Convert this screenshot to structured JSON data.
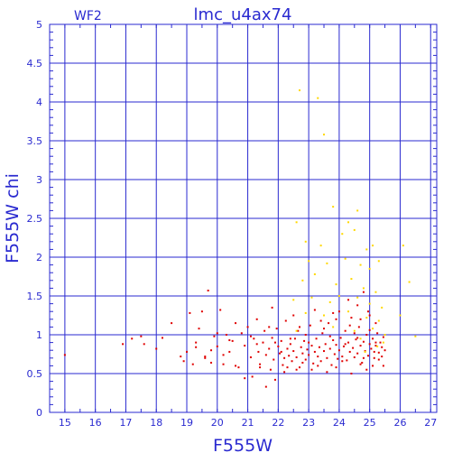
{
  "chart_data": {
    "type": "scatter",
    "title": "lmc_u4ax74",
    "subtitle": "WF2",
    "xlabel": "F555W",
    "ylabel": "F555W chi",
    "xlim": [
      14.5,
      27.2
    ],
    "ylim": [
      0,
      5
    ],
    "xticks": [
      15,
      16,
      17,
      18,
      19,
      20,
      21,
      22,
      23,
      24,
      25,
      26,
      27
    ],
    "yticks": [
      0,
      0.5,
      1,
      1.5,
      2,
      2.5,
      3,
      3.5,
      4,
      4.5,
      5
    ],
    "ytick_labels": [
      "0",
      "0.5",
      "1",
      "1.5",
      "2",
      "2.5",
      "3",
      "3.5",
      "4",
      "4.5",
      "5"
    ],
    "grid": true,
    "colors": {
      "axis": "#2a2ad0",
      "grid": "#2a2ad0",
      "series_red": "#e00000",
      "series_yellow": "#ffd800"
    },
    "series": [
      {
        "color": "#e00000",
        "points": [
          [
            15.0,
            0.74
          ],
          [
            16.9,
            0.88
          ],
          [
            17.2,
            0.95
          ],
          [
            17.5,
            0.98
          ],
          [
            17.6,
            0.88
          ],
          [
            18.0,
            0.82
          ],
          [
            18.2,
            0.96
          ],
          [
            18.5,
            1.15
          ],
          [
            18.8,
            0.72
          ],
          [
            19.0,
            0.78
          ],
          [
            19.1,
            1.28
          ],
          [
            19.2,
            0.62
          ],
          [
            19.3,
            0.9
          ],
          [
            19.4,
            1.08
          ],
          [
            19.5,
            1.3
          ],
          [
            19.6,
            0.72
          ],
          [
            19.7,
            1.57
          ],
          [
            19.8,
            0.64
          ],
          [
            19.9,
            0.98
          ],
          [
            20.0,
            0.85
          ],
          [
            20.1,
            1.32
          ],
          [
            20.2,
            0.74
          ],
          [
            20.3,
            1.0
          ],
          [
            20.4,
            0.78
          ],
          [
            20.5,
            0.92
          ],
          [
            20.6,
            0.6
          ],
          [
            20.7,
            0.58
          ],
          [
            20.8,
            1.02
          ],
          [
            20.9,
            0.86
          ],
          [
            21.0,
            1.1
          ],
          [
            21.1,
            0.71
          ],
          [
            21.15,
            0.46
          ],
          [
            21.2,
            0.95
          ],
          [
            21.3,
            1.2
          ],
          [
            21.35,
            0.78
          ],
          [
            21.4,
            0.62
          ],
          [
            21.5,
            0.9
          ],
          [
            21.55,
            1.05
          ],
          [
            21.6,
            0.74
          ],
          [
            21.7,
            0.82
          ],
          [
            21.75,
            0.55
          ],
          [
            21.8,
            0.96
          ],
          [
            21.85,
            0.68
          ],
          [
            21.9,
            0.42
          ],
          [
            21.95,
            1.08
          ],
          [
            22.0,
            0.85
          ],
          [
            22.05,
            0.76
          ],
          [
            22.1,
            0.92
          ],
          [
            22.15,
            0.61
          ],
          [
            22.2,
            0.7
          ],
          [
            22.25,
            1.18
          ],
          [
            22.3,
            0.82
          ],
          [
            22.35,
            0.73
          ],
          [
            22.4,
            0.88
          ],
          [
            22.45,
            0.66
          ],
          [
            22.5,
            0.79
          ],
          [
            22.55,
            0.95
          ],
          [
            22.6,
            0.71
          ],
          [
            22.65,
            1.05
          ],
          [
            22.7,
            0.58
          ],
          [
            22.75,
            0.84
          ],
          [
            22.8,
            0.76
          ],
          [
            22.85,
            0.92
          ],
          [
            22.9,
            0.68
          ],
          [
            22.95,
            0.81
          ],
          [
            23.0,
            0.74
          ],
          [
            23.05,
            1.12
          ],
          [
            23.1,
            0.86
          ],
          [
            23.15,
            0.63
          ],
          [
            23.2,
            0.78
          ],
          [
            23.25,
            0.95
          ],
          [
            23.3,
            0.72
          ],
          [
            23.35,
            0.84
          ],
          [
            23.4,
            0.66
          ],
          [
            23.45,
            1.02
          ],
          [
            23.5,
            0.79
          ],
          [
            23.55,
            0.88
          ],
          [
            23.6,
            0.7
          ],
          [
            23.65,
            1.15
          ],
          [
            23.7,
            0.82
          ],
          [
            23.75,
            0.61
          ],
          [
            23.8,
            0.93
          ],
          [
            23.85,
            0.75
          ],
          [
            23.9,
            0.87
          ],
          [
            23.95,
            0.69
          ],
          [
            24.0,
            0.8
          ],
          [
            24.05,
            0.96
          ],
          [
            24.1,
            0.72
          ],
          [
            24.15,
            0.85
          ],
          [
            24.2,
            1.05
          ],
          [
            24.25,
            0.67
          ],
          [
            24.3,
            0.9
          ],
          [
            24.35,
            0.78
          ],
          [
            24.4,
            1.22
          ],
          [
            24.45,
            0.83
          ],
          [
            24.5,
            0.71
          ],
          [
            24.55,
            0.94
          ],
          [
            24.6,
            0.76
          ],
          [
            24.65,
            1.1
          ],
          [
            24.7,
            0.86
          ],
          [
            24.75,
            0.64
          ],
          [
            24.8,
            0.91
          ],
          [
            24.85,
            0.79
          ],
          [
            24.9,
            1.0
          ],
          [
            24.95,
            0.73
          ],
          [
            25.0,
            0.88
          ],
          [
            25.05,
            0.82
          ],
          [
            25.1,
            0.95
          ],
          [
            25.15,
            0.7
          ],
          [
            25.2,
            0.86
          ],
          [
            25.25,
            1.02
          ],
          [
            25.3,
            0.77
          ],
          [
            25.35,
            0.9
          ],
          [
            25.4,
            0.84
          ],
          [
            25.45,
            0.97
          ],
          [
            25.5,
            0.8
          ],
          [
            23.2,
            1.32
          ],
          [
            23.8,
            1.28
          ],
          [
            24.3,
            1.45
          ],
          [
            24.6,
            1.38
          ],
          [
            25.0,
            1.25
          ],
          [
            24.8,
            1.55
          ],
          [
            23.6,
            0.52
          ],
          [
            24.9,
            0.55
          ],
          [
            22.6,
            0.55
          ],
          [
            21.6,
            0.33
          ],
          [
            24.4,
            0.5
          ],
          [
            25.1,
            0.6
          ],
          [
            25.3,
            0.68
          ],
          [
            24.7,
            0.62
          ],
          [
            23.9,
            0.58
          ],
          [
            22.2,
            0.52
          ],
          [
            20.9,
            0.44
          ],
          [
            19.6,
            0.7
          ],
          [
            18.9,
            0.66
          ],
          [
            20.4,
            0.93
          ],
          [
            21.8,
            1.35
          ],
          [
            22.9,
            1.0
          ],
          [
            23.4,
            1.18
          ],
          [
            24.0,
            1.3
          ],
          [
            24.7,
            1.2
          ],
          [
            25.2,
            1.15
          ],
          [
            22.4,
            0.95
          ],
          [
            21.3,
            0.88
          ],
          [
            20.6,
            1.15
          ],
          [
            19.3,
            0.84
          ],
          [
            23.7,
            0.98
          ],
          [
            24.2,
            0.88
          ],
          [
            24.6,
            0.96
          ],
          [
            25.0,
            1.06
          ],
          [
            25.4,
            0.72
          ],
          [
            23.3,
            0.6
          ],
          [
            22.8,
            0.64
          ],
          [
            22.1,
            0.78
          ],
          [
            21.4,
            0.58
          ],
          [
            20.2,
            0.62
          ],
          [
            23.0,
            0.9
          ],
          [
            24.1,
            0.66
          ],
          [
            25.2,
            0.9
          ],
          [
            24.5,
            1.02
          ],
          [
            23.5,
            1.08
          ],
          [
            22.7,
            1.1
          ],
          [
            21.9,
            0.9
          ],
          [
            21.1,
            0.98
          ],
          [
            20.0,
            1.02
          ],
          [
            19.8,
            0.8
          ],
          [
            24.8,
            0.7
          ],
          [
            25.45,
            0.6
          ],
          [
            23.9,
            1.2
          ],
          [
            24.35,
            1.12
          ],
          [
            22.5,
            1.25
          ],
          [
            23.1,
            0.55
          ],
          [
            24.95,
            1.3
          ],
          [
            25.15,
            0.78
          ],
          [
            21.7,
            1.1
          ],
          [
            22.3,
            0.58
          ]
        ]
      },
      {
        "color": "#ffd800",
        "points": [
          [
            22.7,
            4.15
          ],
          [
            23.3,
            4.05
          ],
          [
            23.5,
            3.58
          ],
          [
            23.8,
            2.65
          ],
          [
            22.6,
            2.45
          ],
          [
            24.3,
            2.45
          ],
          [
            24.6,
            2.6
          ],
          [
            22.9,
            2.2
          ],
          [
            23.4,
            2.15
          ],
          [
            24.1,
            2.3
          ],
          [
            24.5,
            2.35
          ],
          [
            24.9,
            2.1
          ],
          [
            25.1,
            2.15
          ],
          [
            26.1,
            2.15
          ],
          [
            23.0,
            1.95
          ],
          [
            23.6,
            1.92
          ],
          [
            24.2,
            1.98
          ],
          [
            24.7,
            1.9
          ],
          [
            25.0,
            1.85
          ],
          [
            25.3,
            1.95
          ],
          [
            22.8,
            1.7
          ],
          [
            23.2,
            1.78
          ],
          [
            23.9,
            1.65
          ],
          [
            24.4,
            1.72
          ],
          [
            24.8,
            1.6
          ],
          [
            25.2,
            1.55
          ],
          [
            26.3,
            1.68
          ],
          [
            22.5,
            1.45
          ],
          [
            23.1,
            1.48
          ],
          [
            23.7,
            1.42
          ],
          [
            24.0,
            1.5
          ],
          [
            24.6,
            1.48
          ],
          [
            25.0,
            1.4
          ],
          [
            25.4,
            1.35
          ],
          [
            22.9,
            1.28
          ],
          [
            23.5,
            1.25
          ],
          [
            24.3,
            1.3
          ],
          [
            24.9,
            1.22
          ],
          [
            25.3,
            1.18
          ],
          [
            26.0,
            1.25
          ],
          [
            23.8,
            1.1
          ],
          [
            24.5,
            1.05
          ],
          [
            25.1,
            1.08
          ],
          [
            25.5,
            1.0
          ],
          [
            24.7,
            0.95
          ],
          [
            26.5,
            0.98
          ],
          [
            22.6,
            1.05
          ],
          [
            25.25,
            0.85
          ],
          [
            24.85,
            0.78
          ],
          [
            25.45,
            0.9
          ]
        ]
      }
    ]
  }
}
